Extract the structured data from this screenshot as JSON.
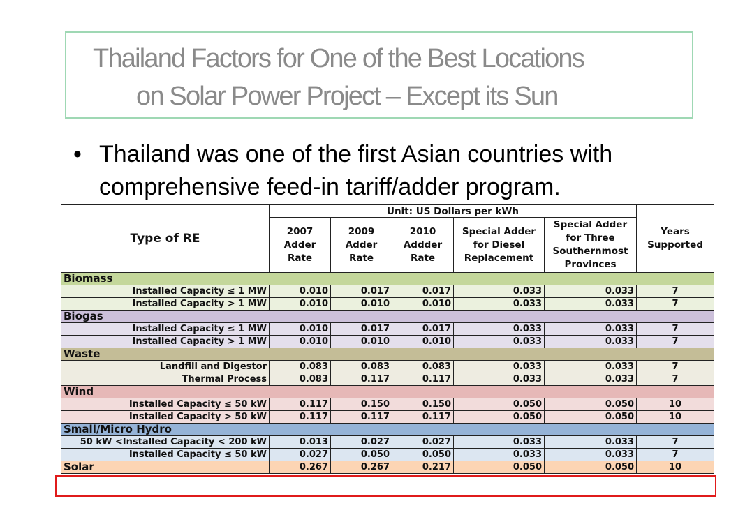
{
  "title": {
    "line1": "Thailand Factors for One of the Best Locations",
    "line2": "on Solar Power Project – Except its Sun"
  },
  "bullet": {
    "marker": "•",
    "text": "Thailand was one of the first Asian countries with comprehensive feed-in tariff/adder program."
  },
  "table": {
    "type_header": "Type of RE",
    "unit_header": "Unit: US Dollars per kWh",
    "col_2007": "2007 Adder Rate",
    "col_2009": "2009 Adder Rate",
    "col_2010": "2010 Addder Rate",
    "col_diesel": "Special Adder for Diesel Replacement",
    "col_south": "Special Adder for Three Southernmost Provinces",
    "col_years": "Years Supported",
    "biomass": {
      "category": "Biomass",
      "rows": [
        {
          "label": "Installed Capacity ≤ 1 MW",
          "r2007": "0.010",
          "r2009": "0.017",
          "r2010": "0.017",
          "diesel": "0.033",
          "south": "0.033",
          "years": "7"
        },
        {
          "label": "Installed Capacity > 1 MW",
          "r2007": "0.010",
          "r2009": "0.010",
          "r2010": "0.010",
          "diesel": "0.033",
          "south": "0.033",
          "years": "7"
        }
      ]
    },
    "biogas": {
      "category": "Biogas",
      "rows": [
        {
          "label": "Installed Capacity ≤ 1 MW",
          "r2007": "0.010",
          "r2009": "0.017",
          "r2010": "0.017",
          "diesel": "0.033",
          "south": "0.033",
          "years": "7"
        },
        {
          "label": "Installed Capacity > 1 MW",
          "r2007": "0.010",
          "r2009": "0.010",
          "r2010": "0.010",
          "diesel": "0.033",
          "south": "0.033",
          "years": "7"
        }
      ]
    },
    "waste": {
      "category": "Waste",
      "rows": [
        {
          "label": "Landfill and Digestor",
          "r2007": "0.083",
          "r2009": "0.083",
          "r2010": "0.083",
          "diesel": "0.033",
          "south": "0.033",
          "years": "7"
        },
        {
          "label": "Thermal Process",
          "r2007": "0.083",
          "r2009": "0.117",
          "r2010": "0.117",
          "diesel": "0.033",
          "south": "0.033",
          "years": "7"
        }
      ]
    },
    "wind": {
      "category": "Wind",
      "rows": [
        {
          "label": "Installed Capacity ≤ 50 kW",
          "r2007": "0.117",
          "r2009": "0.150",
          "r2010": "0.150",
          "diesel": "0.050",
          "south": "0.050",
          "years": "10"
        },
        {
          "label": "Installed Capacity > 50 kW",
          "r2007": "0.117",
          "r2009": "0.117",
          "r2010": "0.117",
          "diesel": "0.050",
          "south": "0.050",
          "years": "10"
        }
      ]
    },
    "hydro": {
      "category": "Small/Micro Hydro",
      "rows": [
        {
          "label": "50 kW <Installed Capacity < 200 kW",
          "r2007": "0.013",
          "r2009": "0.027",
          "r2010": "0.027",
          "diesel": "0.033",
          "south": "0.033",
          "years": "7"
        },
        {
          "label": "Installed Capacity ≤ 50 kW",
          "r2007": "0.027",
          "r2009": "0.050",
          "r2010": "0.050",
          "diesel": "0.033",
          "south": "0.033",
          "years": "7"
        }
      ]
    },
    "solar": {
      "label": "Solar",
      "r2007": "0.267",
      "r2009": "0.267",
      "r2010": "0.217",
      "diesel": "0.050",
      "south": "0.050",
      "years": "10"
    }
  }
}
